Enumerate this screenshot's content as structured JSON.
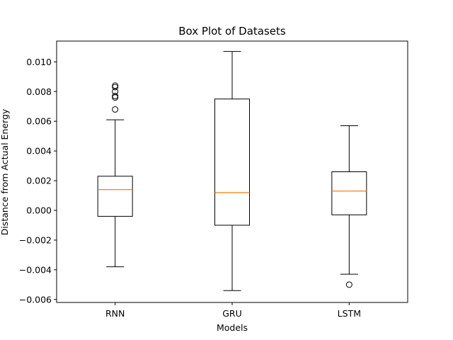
{
  "chart_data": {
    "type": "box",
    "title": "Box Plot of Datasets",
    "xlabel": "Models",
    "ylabel": "Distance from Actual Energy",
    "categories": [
      "RNN",
      "GRU",
      "LSTM"
    ],
    "ylim": [
      -0.0062,
      0.0114
    ],
    "yticks": [
      -0.006,
      -0.004,
      -0.002,
      0.0,
      0.002,
      0.004,
      0.006,
      0.008,
      0.01
    ],
    "ytick_labels": [
      "−0.006",
      "−0.004",
      "−0.002",
      "0.000",
      "0.002",
      "0.004",
      "0.006",
      "0.008",
      "0.010"
    ],
    "grid": false,
    "colors": {
      "box": "#000000",
      "median": "#ff7f0e",
      "flier": "#000000"
    },
    "series": [
      {
        "category": "RNN",
        "whisker_low": -0.0038,
        "q1": -0.0004,
        "median": 0.0014,
        "q3": 0.0023,
        "whisker_high": 0.0061,
        "fliers": [
          0.0068,
          0.0076,
          0.0077,
          0.008,
          0.0083,
          0.0084
        ]
      },
      {
        "category": "GRU",
        "whisker_low": -0.0054,
        "q1": -0.001,
        "median": 0.0012,
        "q3": 0.0075,
        "whisker_high": 0.0107,
        "fliers": []
      },
      {
        "category": "LSTM",
        "whisker_low": -0.0043,
        "q1": -0.0003,
        "median": 0.0013,
        "q3": 0.0026,
        "whisker_high": 0.0057,
        "fliers": [
          -0.005
        ]
      }
    ]
  }
}
